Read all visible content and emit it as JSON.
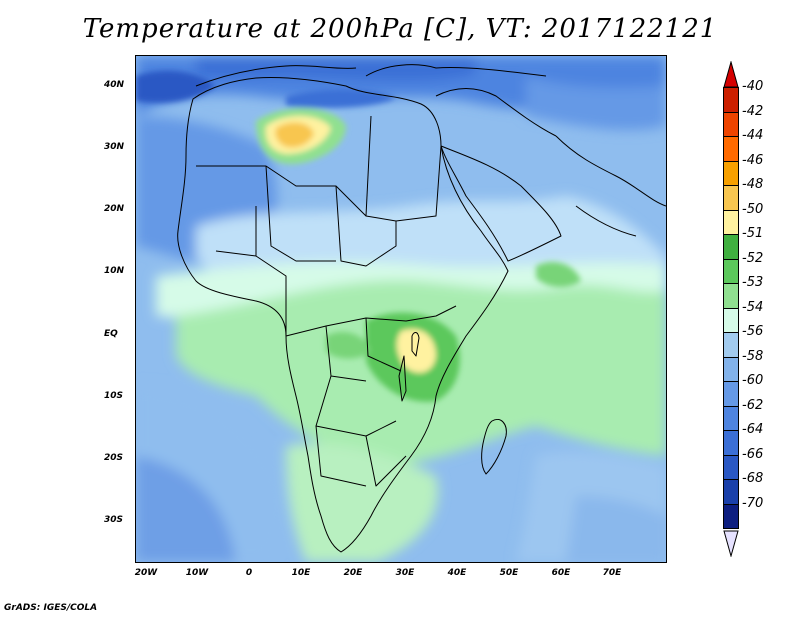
{
  "map": {
    "title": "Temperature at 200hPa [C], VT: 2017122121",
    "lat_labels": [
      "40N",
      "30N",
      "20N",
      "10N",
      "EQ",
      "10S",
      "20S",
      "30S"
    ],
    "lon_labels": [
      "20W",
      "10W",
      "0",
      "10E",
      "20E",
      "30E",
      "40E",
      "50E",
      "60E",
      "70E"
    ],
    "extent": {
      "lon_min": -22,
      "lon_max": 80,
      "lat_min": -37,
      "lat_max": 45
    },
    "colorbar": {
      "labels": [
        "-40",
        "-42",
        "-44",
        "-46",
        "-48",
        "-50",
        "-51",
        "-52",
        "-53",
        "-54",
        "-56",
        "-58",
        "-60",
        "-62",
        "-64",
        "-66",
        "-68",
        "-70"
      ],
      "colors": [
        "#cc1f00",
        "#ee4400",
        "#ff6a00",
        "#f7a000",
        "#f8c650",
        "#fff2a0",
        "#40b040",
        "#5cc85c",
        "#90e090",
        "#d6fbe8",
        "#a2cbef",
        "#82b2ea",
        "#6599e6",
        "#4e84e0",
        "#3b6fd6",
        "#2a58c4",
        "#1a40aa",
        "#0d1e80"
      ],
      "top_arrow_color": "#d40000",
      "bottom_arrow_color": "#e6e2ff"
    },
    "credit": "GrADS: IGES/COLA"
  }
}
